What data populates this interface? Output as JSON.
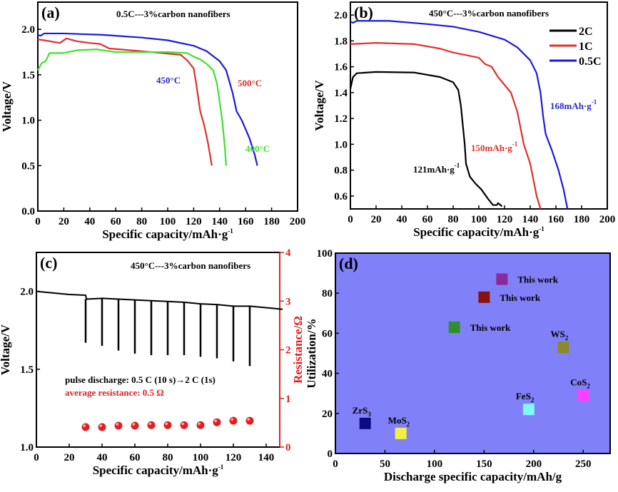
{
  "chart_data": [
    {
      "panel_label": "(a)",
      "type": "line",
      "title": "0.5C---3%carbon nanofibers",
      "xlabel": {
        "text": "Specific capacity/mAh·g",
        "sup": "-1"
      },
      "ylabel": "Voltage/V",
      "xlim": [
        0,
        200
      ],
      "ylim": [
        0,
        2.3
      ],
      "xticks": [
        0,
        20,
        40,
        60,
        80,
        100,
        120,
        140,
        160,
        180,
        200
      ],
      "yticks": [
        "0.0",
        "0.5",
        "1.0",
        "1.5",
        "2.0"
      ],
      "series": [
        {
          "name": "450°C",
          "color": "#1a1adc",
          "label_color": "#2a2ac8",
          "points": [
            [
              0,
              1.94
            ],
            [
              2,
              1.93
            ],
            [
              5,
              1.955
            ],
            [
              20,
              1.955
            ],
            [
              50,
              1.94
            ],
            [
              80,
              1.91
            ],
            [
              100,
              1.88
            ],
            [
              120,
              1.82
            ],
            [
              130,
              1.76
            ],
            [
              140,
              1.65
            ],
            [
              145,
              1.55
            ],
            [
              150,
              1.3
            ],
            [
              153,
              1.1
            ],
            [
              157,
              1.0
            ],
            [
              163,
              0.8
            ],
            [
              167,
              0.62
            ],
            [
              169,
              0.5
            ]
          ]
        },
        {
          "name": "500°C",
          "color": "#e0302a",
          "label_color": "#e0302a",
          "points": [
            [
              0,
              1.89
            ],
            [
              5,
              1.88
            ],
            [
              17,
              1.85
            ],
            [
              22,
              1.9
            ],
            [
              30,
              1.87
            ],
            [
              40,
              1.85
            ],
            [
              48,
              1.84
            ],
            [
              55,
              1.79
            ],
            [
              80,
              1.76
            ],
            [
              110,
              1.72
            ],
            [
              115,
              1.66
            ],
            [
              120,
              1.57
            ],
            [
              122,
              1.4
            ],
            [
              125,
              1.1
            ],
            [
              128,
              0.95
            ],
            [
              131,
              0.75
            ],
            [
              134,
              0.5
            ]
          ]
        },
        {
          "name": "400°C",
          "color": "#40e030",
          "label_color": "#40e030",
          "points": [
            [
              0,
              1.55
            ],
            [
              3,
              1.63
            ],
            [
              6,
              1.65
            ],
            [
              9,
              1.74
            ],
            [
              20,
              1.74
            ],
            [
              30,
              1.77
            ],
            [
              45,
              1.78
            ],
            [
              60,
              1.75
            ],
            [
              100,
              1.75
            ],
            [
              115,
              1.74
            ],
            [
              120,
              1.7
            ],
            [
              125,
              1.67
            ],
            [
              130,
              1.62
            ],
            [
              135,
              1.55
            ],
            [
              138,
              1.4
            ],
            [
              140,
              1.2
            ],
            [
              142,
              1.0
            ],
            [
              144,
              0.7
            ],
            [
              145,
              0.5
            ]
          ]
        }
      ]
    },
    {
      "panel_label": "(b)",
      "type": "line",
      "title": "450°C---3%carbon nanofibers",
      "xlabel": {
        "text": "Specific capacity/mAh·g",
        "sup": "-1"
      },
      "ylabel": "Voltage/V",
      "xlim": [
        0,
        200
      ],
      "ylim": [
        0.5,
        2.1
      ],
      "xticks": [
        0,
        20,
        40,
        60,
        80,
        100,
        120,
        140,
        160,
        180,
        200
      ],
      "yticks": [
        "0.6",
        "0.8",
        "1.0",
        "1.2",
        "1.4",
        "1.6",
        "1.8",
        "2.0"
      ],
      "legend": "top-right",
      "series": [
        {
          "name": "2C",
          "color": "#000000",
          "annotation": {
            "text": "121mAh·g",
            "sup": "-1",
            "color": "#000000"
          },
          "points": [
            [
              0,
              1.43
            ],
            [
              2,
              1.52
            ],
            [
              5,
              1.55
            ],
            [
              20,
              1.56
            ],
            [
              50,
              1.555
            ],
            [
              70,
              1.52
            ],
            [
              80,
              1.48
            ],
            [
              84,
              1.42
            ],
            [
              86,
              1.3
            ],
            [
              88,
              1.1
            ],
            [
              89,
              1.0
            ],
            [
              90,
              0.85
            ],
            [
              93,
              0.75
            ],
            [
              97,
              0.7
            ],
            [
              102,
              0.65
            ],
            [
              107,
              0.58
            ],
            [
              111,
              0.53
            ],
            [
              114,
              0.53
            ],
            [
              115,
              0.545
            ],
            [
              118,
              0.52
            ]
          ]
        },
        {
          "name": "1C",
          "color": "#e0302a",
          "annotation": {
            "text": "150mAh·g",
            "sup": "-1",
            "color": "#e0302a"
          },
          "points": [
            [
              0,
              1.775
            ],
            [
              20,
              1.785
            ],
            [
              50,
              1.775
            ],
            [
              70,
              1.74
            ],
            [
              80,
              1.71
            ],
            [
              100,
              1.67
            ],
            [
              105,
              1.62
            ],
            [
              110,
              1.6
            ],
            [
              115,
              1.52
            ],
            [
              120,
              1.46
            ],
            [
              125,
              1.4
            ],
            [
              130,
              1.25
            ],
            [
              135,
              1.0
            ],
            [
              140,
              0.85
            ],
            [
              145,
              0.6
            ],
            [
              148,
              0.5
            ]
          ]
        },
        {
          "name": "0.5C",
          "color": "#1a1adc",
          "annotation": {
            "text": "168mAh·g",
            "sup": "-1",
            "color": "#2a2ac8"
          },
          "points": [
            [
              0,
              1.95
            ],
            [
              2,
              1.94
            ],
            [
              5,
              1.955
            ],
            [
              30,
              1.955
            ],
            [
              60,
              1.93
            ],
            [
              80,
              1.91
            ],
            [
              100,
              1.87
            ],
            [
              120,
              1.81
            ],
            [
              130,
              1.75
            ],
            [
              140,
              1.65
            ],
            [
              145,
              1.55
            ],
            [
              148,
              1.4
            ],
            [
              150,
              1.22
            ],
            [
              152,
              1.08
            ],
            [
              157,
              0.95
            ],
            [
              162,
              0.8
            ],
            [
              166,
              0.65
            ],
            [
              169,
              0.5
            ]
          ]
        }
      ]
    },
    {
      "panel_label": "(c)",
      "type": "line+scatter",
      "title": "450°C---3%carbon nanofibers",
      "xlabel": {
        "text": "Specific capacity/mAh·g",
        "sup": "-1"
      },
      "ylabel": "Voltage/V",
      "y2label": "Resistance/Ω",
      "xlim": [
        0,
        150
      ],
      "ylim": [
        1.0,
        2.25
      ],
      "y2lim": [
        0,
        4
      ],
      "xticks": [
        0,
        20,
        40,
        60,
        80,
        100,
        120,
        140
      ],
      "yticks": [
        "1.0",
        "1.5",
        "2.0"
      ],
      "y2ticks": [
        "0",
        "1",
        "2",
        "3",
        "4"
      ],
      "voltage_color": "#000000",
      "resistance_color": "#e02020",
      "annotations": [
        {
          "text": "pulse discharge: 0.5 C (10 s)→2 C (1s)",
          "color": "#000000"
        },
        {
          "text": "average resistance: 0.5 Ω",
          "color": "#e02020"
        }
      ],
      "voltage_baseline": [
        [
          0,
          2.0
        ],
        [
          20,
          1.98
        ],
        [
          30,
          1.975
        ],
        [
          30.5,
          1.95
        ],
        [
          40,
          1.955
        ],
        [
          50,
          1.95
        ],
        [
          60,
          1.945
        ],
        [
          70,
          1.94
        ],
        [
          80,
          1.935
        ],
        [
          90,
          1.93
        ],
        [
          100,
          1.92
        ],
        [
          110,
          1.915
        ],
        [
          120,
          1.905
        ],
        [
          130,
          1.905
        ],
        [
          150,
          1.885
        ]
      ],
      "pulses": {
        "x": [
          30,
          40,
          50,
          60,
          70,
          80,
          90,
          100,
          110,
          120,
          130
        ],
        "min_voltage": [
          1.67,
          1.65,
          1.62,
          1.6,
          1.59,
          1.59,
          1.59,
          1.58,
          1.57,
          1.55,
          1.52
        ]
      },
      "resistance": {
        "x": [
          30,
          40,
          50,
          60,
          70,
          80,
          90,
          100,
          110,
          120,
          130
        ],
        "values": [
          0.41,
          0.41,
          0.44,
          0.44,
          0.45,
          0.45,
          0.45,
          0.45,
          0.51,
          0.54,
          0.54
        ]
      }
    },
    {
      "panel_label": "(d)",
      "type": "scatter",
      "xlabel": "Discharge specific capacity/mAh/g",
      "ylabel": "Utilization/%",
      "xlim": [
        0,
        275
      ],
      "ylim": [
        0,
        100
      ],
      "xticks": [
        0,
        50,
        100,
        150,
        200,
        250
      ],
      "yticks": [
        0,
        20,
        40,
        60,
        80,
        100
      ],
      "background": "#8080f8",
      "points": [
        {
          "label": "ZrS",
          "sub": "3",
          "x": 30,
          "y": 15,
          "color": "#0c0c80",
          "label_pos": "above"
        },
        {
          "label": "MoS",
          "sub": "2",
          "x": 66,
          "y": 10,
          "color": "#f0f040",
          "label_pos": "above"
        },
        {
          "label": "This work",
          "sub": "",
          "x": 120,
          "y": 63,
          "color": "#2f8f2f",
          "label_pos": "right"
        },
        {
          "label": "This work",
          "sub": "",
          "x": 150,
          "y": 78,
          "color": "#8b1010",
          "label_pos": "right"
        },
        {
          "label": "This work",
          "sub": "",
          "x": 168,
          "y": 87,
          "color": "#8b2a9a",
          "label_pos": "right"
        },
        {
          "label": "FeS",
          "sub": "2",
          "x": 195,
          "y": 22,
          "color": "#80f8f8",
          "label_pos": "above"
        },
        {
          "label": "WS",
          "sub": "2",
          "x": 230,
          "y": 53,
          "color": "#8a8a28",
          "label_pos": "above"
        },
        {
          "label": "CoS",
          "sub": "2",
          "x": 250,
          "y": 29,
          "color": "#ff40ff",
          "label_pos": "above"
        }
      ]
    }
  ]
}
